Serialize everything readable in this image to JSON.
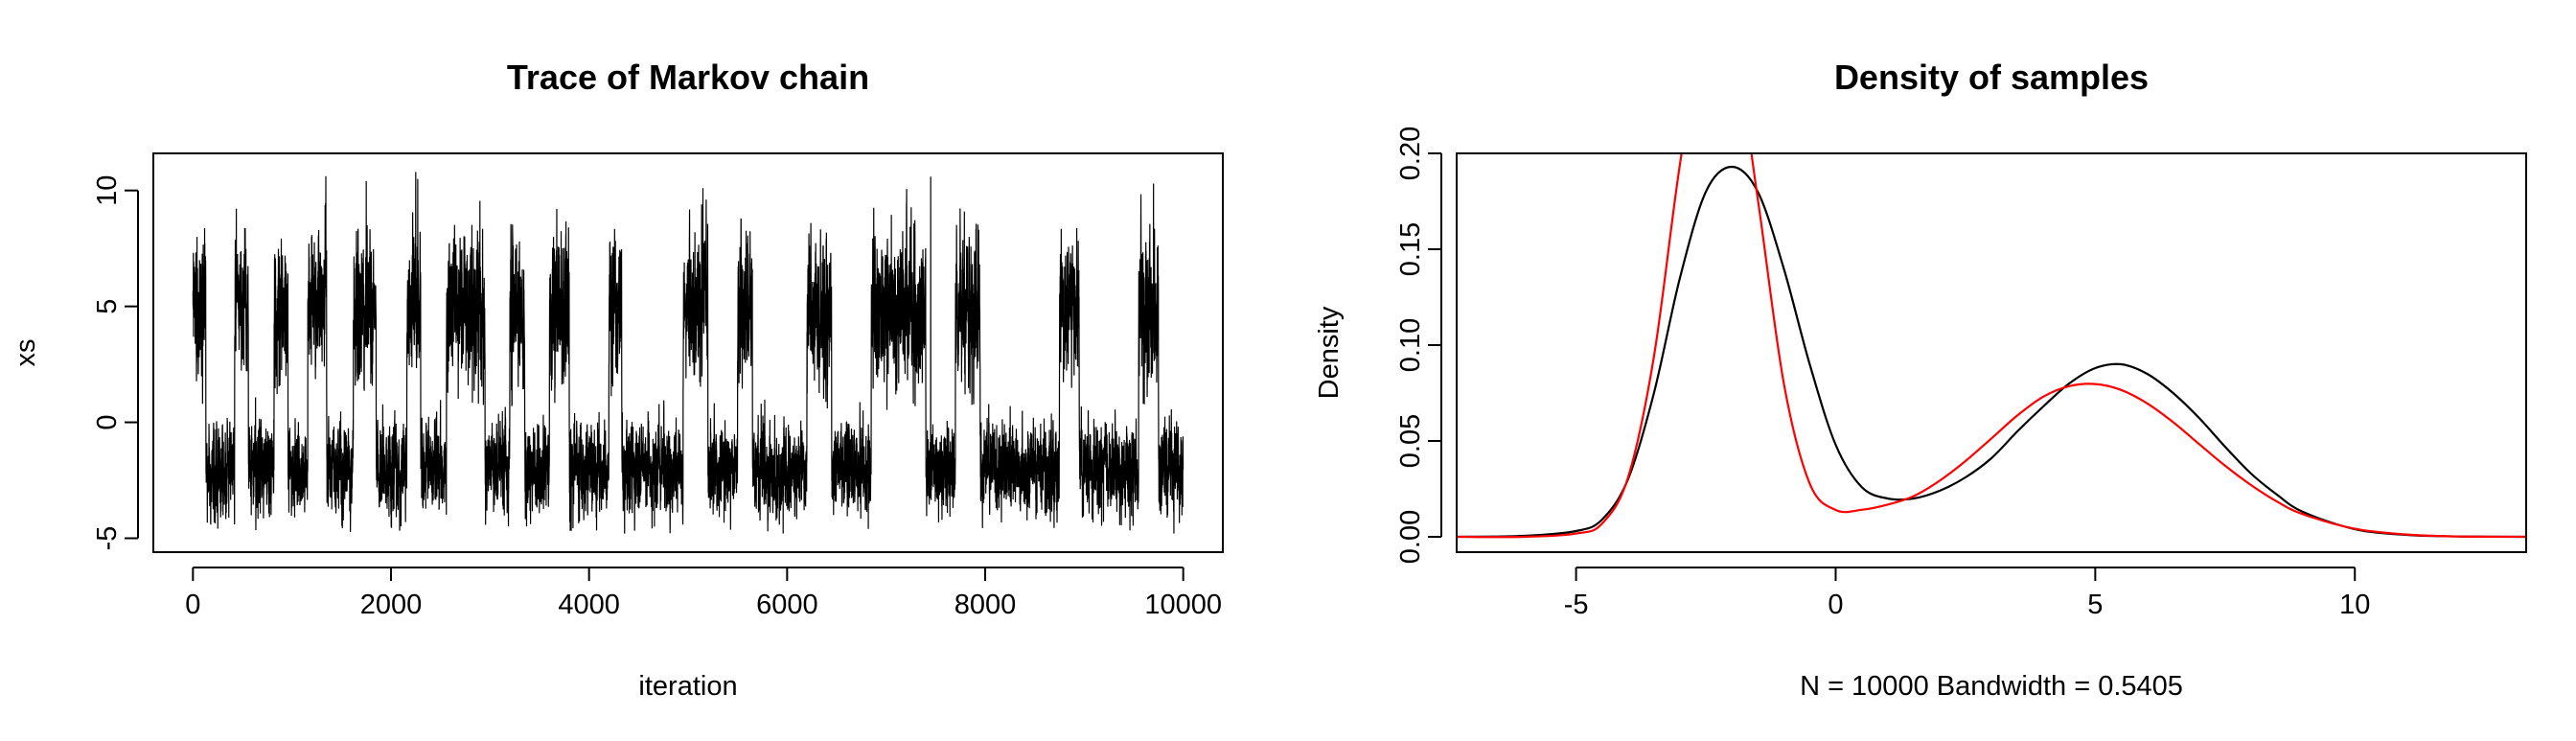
{
  "colors": {
    "background": "#ffffff",
    "ink": "#000000",
    "theoretical": "#ff0000"
  },
  "chart_data": [
    {
      "type": "line",
      "title": "Trace of Markov chain",
      "xlabel": "iteration",
      "ylabel": "xs",
      "xlim": [
        -400,
        10400
      ],
      "ylim": [
        -5.6,
        11.6
      ],
      "xticks": [
        0,
        2000,
        4000,
        6000,
        8000,
        10000
      ],
      "xtick_labels": [
        "0",
        "2000",
        "4000",
        "6000",
        "8000",
        "10000"
      ],
      "yticks": [
        -5,
        0,
        5,
        10
      ],
      "ytick_labels": [
        "-5",
        "0",
        "5",
        "10"
      ],
      "grid": false,
      "series": [
        {
          "color": "#000000",
          "n": 10000,
          "mode_regimes": [
            {
              "x": [
                0,
                130
              ],
              "mode": "high"
            },
            {
              "x": [
                130,
                420
              ],
              "mode": "low"
            },
            {
              "x": [
                420,
                560
              ],
              "mode": "high"
            },
            {
              "x": [
                560,
                820
              ],
              "mode": "low"
            },
            {
              "x": [
                820,
                960
              ],
              "mode": "high"
            },
            {
              "x": [
                960,
                1160
              ],
              "mode": "low"
            },
            {
              "x": [
                1160,
                1350
              ],
              "mode": "high"
            },
            {
              "x": [
                1350,
                1620
              ],
              "mode": "low"
            },
            {
              "x": [
                1620,
                1850
              ],
              "mode": "high"
            },
            {
              "x": [
                1850,
                2160
              ],
              "mode": "low"
            },
            {
              "x": [
                2160,
                2300
              ],
              "mode": "high"
            },
            {
              "x": [
                2300,
                2560
              ],
              "mode": "low"
            },
            {
              "x": [
                2560,
                2950
              ],
              "mode": "high"
            },
            {
              "x": [
                2950,
                3200
              ],
              "mode": "low"
            },
            {
              "x": [
                3200,
                3350
              ],
              "mode": "high"
            },
            {
              "x": [
                3350,
                3600
              ],
              "mode": "low"
            },
            {
              "x": [
                3600,
                3800
              ],
              "mode": "high"
            },
            {
              "x": [
                3800,
                4200
              ],
              "mode": "low"
            },
            {
              "x": [
                4200,
                4330
              ],
              "mode": "high"
            },
            {
              "x": [
                4330,
                4950
              ],
              "mode": "low"
            },
            {
              "x": [
                4950,
                5200
              ],
              "mode": "high"
            },
            {
              "x": [
                5200,
                5500
              ],
              "mode": "low"
            },
            {
              "x": [
                5500,
                5650
              ],
              "mode": "high"
            },
            {
              "x": [
                5650,
                6200
              ],
              "mode": "low"
            },
            {
              "x": [
                6200,
                6450
              ],
              "mode": "high"
            },
            {
              "x": [
                6450,
                6850
              ],
              "mode": "low"
            },
            {
              "x": [
                6850,
                7400
              ],
              "mode": "high"
            },
            {
              "x": [
                7400,
                7700
              ],
              "mode": "low"
            },
            {
              "x": [
                7700,
                7950
              ],
              "mode": "high"
            },
            {
              "x": [
                7950,
                8750
              ],
              "mode": "low"
            },
            {
              "x": [
                8750,
                8950
              ],
              "mode": "high"
            },
            {
              "x": [
                8950,
                9550
              ],
              "mode": "low"
            },
            {
              "x": [
                9550,
                9750
              ],
              "mode": "high"
            },
            {
              "x": [
                9750,
                10000
              ],
              "mode": "low"
            }
          ],
          "modes": {
            "low": {
              "center": -2.0,
              "spread": 1.05,
              "min": -4.8,
              "max": 1.5
            },
            "high": {
              "center": 5.0,
              "spread": 2.2,
              "min": 0.5,
              "max": 10.8
            }
          }
        }
      ]
    },
    {
      "type": "line",
      "title": "Density of samples",
      "xlabel": "N = 10000   Bandwidth = 0.5405",
      "ylabel": "Density",
      "xlim": [
        -7.3,
        13.3
      ],
      "ylim": [
        -0.008,
        0.2
      ],
      "xticks": [
        -5,
        0,
        5,
        10
      ],
      "xtick_labels": [
        "-5",
        "0",
        "5",
        "10"
      ],
      "yticks": [
        0.0,
        0.05,
        0.1,
        0.15,
        0.2
      ],
      "ytick_labels": [
        "0.00",
        "0.05",
        "0.10",
        "0.15",
        "0.20"
      ],
      "grid": false,
      "series": [
        {
          "color": "#000000",
          "x": [
            -7.3,
            -6,
            -5,
            -4.5,
            -4,
            -3.5,
            -3,
            -2.5,
            -2,
            -1.5,
            -1,
            -0.5,
            0,
            0.5,
            1,
            1.5,
            2,
            2.5,
            3,
            3.5,
            4,
            4.5,
            5,
            5.5,
            6,
            6.5,
            7,
            7.5,
            8,
            8.5,
            9,
            10,
            11,
            12,
            13.3
          ],
          "y": [
            0.0,
            0.0005,
            0.003,
            0.009,
            0.03,
            0.075,
            0.135,
            0.18,
            0.193,
            0.18,
            0.14,
            0.09,
            0.048,
            0.026,
            0.02,
            0.02,
            0.024,
            0.031,
            0.041,
            0.055,
            0.068,
            0.08,
            0.088,
            0.09,
            0.085,
            0.075,
            0.062,
            0.047,
            0.033,
            0.022,
            0.013,
            0.004,
            0.001,
            0.0002,
            0.0
          ],
          "name": ""
        },
        {
          "color": "#ff0000",
          "x": [
            -7.3,
            -6,
            -5,
            -4.5,
            -4,
            -3.5,
            -3,
            -2.5,
            -2,
            -1.5,
            -1,
            -0.5,
            0,
            0.5,
            1,
            1.5,
            2,
            2.5,
            3,
            3.5,
            4,
            4.5,
            5,
            5.5,
            6,
            6.5,
            7,
            7.5,
            8,
            8.5,
            9,
            10,
            11,
            12,
            13.3
          ],
          "y": [
            0.0,
            0.0,
            0.0017,
            0.0069,
            0.0309,
            0.0941,
            0.1942,
            0.272,
            0.2637,
            0.1762,
            0.0803,
            0.0278,
            0.014,
            0.0141,
            0.0168,
            0.0212,
            0.0292,
            0.0395,
            0.0513,
            0.0633,
            0.0731,
            0.0786,
            0.0797,
            0.0766,
            0.0696,
            0.0598,
            0.0484,
            0.0371,
            0.027,
            0.0184,
            0.0118,
            0.0042,
            0.0012,
            0.0002,
            0.0
          ],
          "name": ""
        }
      ]
    }
  ]
}
